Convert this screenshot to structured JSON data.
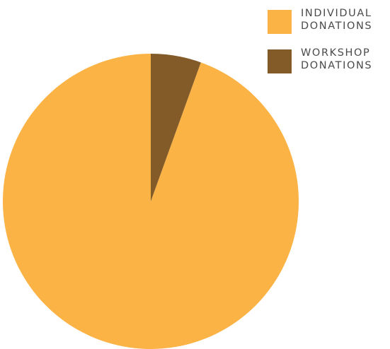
{
  "chart_data": {
    "type": "pie",
    "title": "",
    "legend_position": "top-right",
    "series": [
      {
        "label": "INDIVIDUAL\nDONATIONS",
        "value": 94.5,
        "color": "#fbb345"
      },
      {
        "label": "WORKSHOP\nDONATIONS",
        "value": 5.5,
        "color": "#835b28"
      }
    ]
  }
}
